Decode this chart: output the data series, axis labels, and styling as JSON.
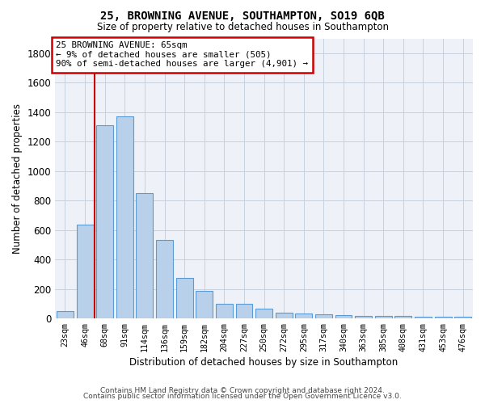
{
  "title1": "25, BROWNING AVENUE, SOUTHAMPTON, SO19 6QB",
  "title2": "Size of property relative to detached houses in Southampton",
  "xlabel": "Distribution of detached houses by size in Southampton",
  "ylabel": "Number of detached properties",
  "categories": [
    "23sqm",
    "46sqm",
    "68sqm",
    "91sqm",
    "114sqm",
    "136sqm",
    "159sqm",
    "182sqm",
    "204sqm",
    "227sqm",
    "250sqm",
    "272sqm",
    "295sqm",
    "317sqm",
    "340sqm",
    "363sqm",
    "385sqm",
    "408sqm",
    "431sqm",
    "453sqm",
    "476sqm"
  ],
  "values": [
    50,
    635,
    1310,
    1370,
    850,
    530,
    275,
    185,
    100,
    100,
    65,
    40,
    35,
    30,
    25,
    15,
    15,
    15,
    10,
    10,
    10
  ],
  "bar_color": "#b8d0ea",
  "bar_edge_color": "#5b9bd5",
  "vline_color": "#cc0000",
  "annotation_line1": "25 BROWNING AVENUE: 65sqm",
  "annotation_line2": "← 9% of detached houses are smaller (505)",
  "annotation_line3": "90% of semi-detached houses are larger (4,901) →",
  "annotation_box_color": "#ffffff",
  "annotation_box_edge": "#cc0000",
  "ylim": [
    0,
    1900
  ],
  "yticks": [
    0,
    200,
    400,
    600,
    800,
    1000,
    1200,
    1400,
    1600,
    1800
  ],
  "footer1": "Contains HM Land Registry data © Crown copyright and database right 2024.",
  "footer2": "Contains public sector information licensed under the Open Government Licence v3.0.",
  "plot_bg_color": "#eef2f8",
  "grid_color": "#c8d0dc"
}
